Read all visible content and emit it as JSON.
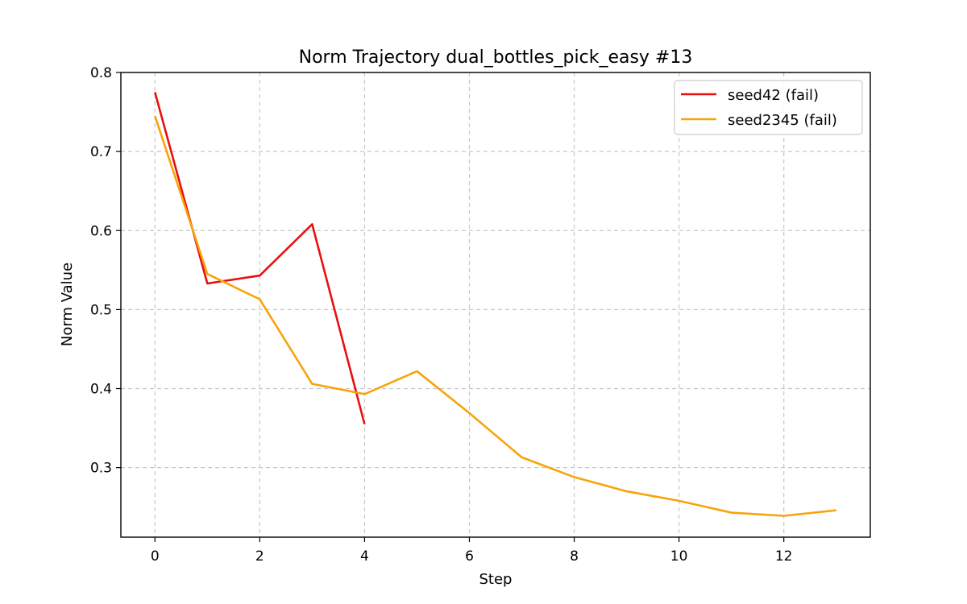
{
  "chart_data": {
    "type": "line",
    "title": "Norm Trajectory dual_bottles_pick_easy #13",
    "xlabel": "Step",
    "ylabel": "Norm Value",
    "xlim": [
      -0.65,
      13.65
    ],
    "ylim": [
      0.212,
      0.8
    ],
    "xticks": [
      0,
      2,
      4,
      6,
      8,
      10,
      12
    ],
    "yticks": [
      0.3,
      0.4,
      0.5,
      0.6,
      0.7,
      0.8
    ],
    "grid": true,
    "legend_position": "top-right",
    "series": [
      {
        "name": "seed42 (fail)",
        "color": "#e8100f",
        "x": [
          0,
          1,
          2,
          3,
          4
        ],
        "y": [
          0.775,
          0.533,
          0.543,
          0.608,
          0.355
        ]
      },
      {
        "name": "seed2345 (fail)",
        "color": "#f7a40a",
        "x": [
          0,
          1,
          2,
          3,
          4,
          5,
          6,
          7,
          8,
          9,
          10,
          11,
          12,
          13
        ],
        "y": [
          0.745,
          0.545,
          0.513,
          0.406,
          0.393,
          0.422,
          0.369,
          0.313,
          0.288,
          0.27,
          0.258,
          0.243,
          0.239,
          0.246
        ]
      }
    ]
  }
}
